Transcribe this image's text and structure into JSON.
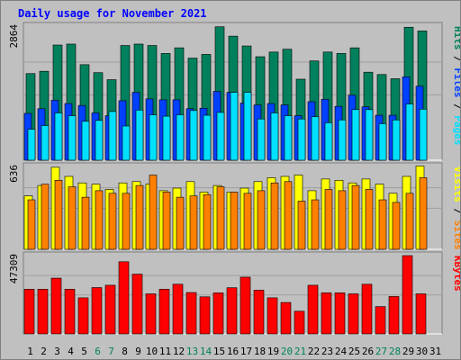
{
  "title": "Daily usage for November 2021",
  "days": [
    "1",
    "2",
    "3",
    "4",
    "5",
    "6",
    "7",
    "8",
    "9",
    "10",
    "11",
    "12",
    "13",
    "14",
    "15",
    "16",
    "17",
    "18",
    "19",
    "20",
    "21",
    "22",
    "23",
    "24",
    "25",
    "26",
    "27",
    "28",
    "29",
    "30",
    "31"
  ],
  "weekend_days": [
    "6",
    "7",
    "13",
    "14",
    "20",
    "21",
    "27",
    "28"
  ],
  "colors": {
    "background": "#c0c0c0",
    "hits": "#00805c",
    "files": "#0040ff",
    "pages": "#00e0ff",
    "visits": "#ffff00",
    "sites": "#ff8000",
    "kbytes": "#ff0000",
    "title": "#0000ff",
    "weekday_label": "#000000",
    "weekend_label": "#00805c"
  },
  "chart_data": [
    {
      "type": "bar",
      "panel": "hits-files-pages",
      "max_label": "2864",
      "ylim": [
        0,
        2864
      ],
      "legend": [
        "Pages",
        "Files",
        "Hits"
      ],
      "categories": [
        "1",
        "2",
        "3",
        "4",
        "5",
        "6",
        "7",
        "8",
        "9",
        "10",
        "11",
        "12",
        "13",
        "14",
        "15",
        "16",
        "17",
        "18",
        "19",
        "20",
        "21",
        "22",
        "23",
        "24",
        "25",
        "26",
        "27",
        "28",
        "29",
        "30",
        "31"
      ],
      "series": [
        {
          "name": "Hits",
          "values": [
            1850,
            1900,
            2460,
            2480,
            2040,
            1870,
            1720,
            2450,
            2480,
            2450,
            2280,
            2400,
            2180,
            2260,
            2850,
            2650,
            2440,
            2210,
            2310,
            2370,
            1730,
            2120,
            2310,
            2280,
            2400,
            1880,
            1830,
            1740,
            2840,
            2760,
            null
          ]
        },
        {
          "name": "Files",
          "values": [
            1000,
            1100,
            1280,
            1210,
            1170,
            1010,
            950,
            1270,
            1450,
            1310,
            1290,
            1290,
            1100,
            1110,
            1470,
            1450,
            1220,
            1180,
            1210,
            1180,
            950,
            1250,
            1300,
            1150,
            1390,
            1140,
            960,
            960,
            1780,
            1580,
            null
          ]
        },
        {
          "name": "Pages",
          "values": [
            660,
            740,
            1010,
            950,
            830,
            850,
            1040,
            730,
            1070,
            970,
            940,
            970,
            1060,
            960,
            1020,
            1450,
            1450,
            880,
            1010,
            950,
            880,
            930,
            800,
            860,
            1080,
            1080,
            780,
            860,
            1200,
            1090,
            null
          ]
        }
      ]
    },
    {
      "type": "bar",
      "panel": "visits-sites",
      "max_label": "636",
      "ylim": [
        0,
        636
      ],
      "legend": [
        "Sites",
        "Visits"
      ],
      "categories": [
        "1",
        "2",
        "3",
        "4",
        "5",
        "6",
        "7",
        "8",
        "9",
        "10",
        "11",
        "12",
        "13",
        "14",
        "15",
        "16",
        "17",
        "18",
        "19",
        "20",
        "21",
        "22",
        "23",
        "24",
        "25",
        "26",
        "27",
        "28",
        "29",
        "30",
        "31"
      ],
      "series": [
        {
          "name": "Visits",
          "values": [
            410,
            490,
            630,
            560,
            510,
            500,
            460,
            510,
            520,
            500,
            450,
            470,
            520,
            440,
            490,
            440,
            470,
            520,
            550,
            560,
            570,
            450,
            540,
            530,
            510,
            540,
            500,
            430,
            560,
            640,
            null
          ]
        },
        {
          "name": "Sites",
          "values": [
            380,
            500,
            530,
            480,
            400,
            450,
            430,
            430,
            490,
            570,
            440,
            400,
            410,
            420,
            480,
            440,
            430,
            450,
            510,
            520,
            370,
            380,
            460,
            450,
            490,
            460,
            380,
            360,
            430,
            550,
            null
          ]
        }
      ]
    },
    {
      "type": "bar",
      "panel": "kbytes",
      "max_label": "47309",
      "ylim": [
        0,
        47309
      ],
      "legend": [
        "KBytes"
      ],
      "categories": [
        "1",
        "2",
        "3",
        "4",
        "5",
        "6",
        "7",
        "8",
        "9",
        "10",
        "11",
        "12",
        "13",
        "14",
        "15",
        "16",
        "17",
        "18",
        "19",
        "20",
        "21",
        "22",
        "23",
        "24",
        "25",
        "26",
        "27",
        "28",
        "29",
        "30",
        "31"
      ],
      "series": [
        {
          "name": "KBytes",
          "values": [
            27000,
            27000,
            33700,
            27000,
            21800,
            28000,
            29400,
            43600,
            36100,
            24200,
            27000,
            30000,
            25000,
            22400,
            24800,
            27900,
            34300,
            26400,
            21800,
            19000,
            13700,
            29400,
            24800,
            24800,
            24200,
            30000,
            16500,
            22600,
            47300,
            24200,
            null
          ]
        }
      ]
    }
  ]
}
